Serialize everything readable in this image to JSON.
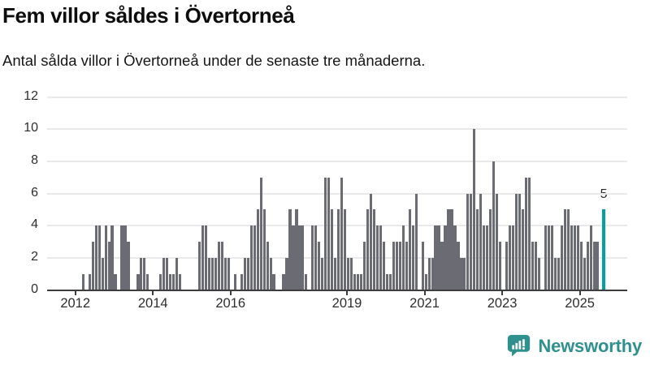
{
  "page": {
    "title": "Fem villor såldes i Övertorneå",
    "subtitle": "Antal sålda villor i Övertorneå under de senaste tre månaderna."
  },
  "annotation": {
    "last_value_label": "5"
  },
  "branding": {
    "name": "Newsworthy",
    "icon": "newsworthy-speech-bubble-chart-icon"
  },
  "colors": {
    "bar": "#6b6b74",
    "highlight": "#00a29e",
    "gridline": "#e9e9e9",
    "axis": "#3d3d3d",
    "text": "#161616",
    "brand": "#2f918e"
  },
  "chart_data": {
    "type": "bar",
    "title": "Fem villor såldes i Övertorneå",
    "subtitle": "Antal sålda villor i Övertorneå under de senaste tre månaderna.",
    "x_unit": "month",
    "x_start": "2012-01",
    "x_end": "2025-08",
    "x_tick_years": [
      2012,
      2014,
      2016,
      2019,
      2021,
      2023,
      2025
    ],
    "y_ticks": [
      0,
      2,
      4,
      6,
      8,
      10,
      12
    ],
    "ylim": [
      0,
      12
    ],
    "grid": "horizontal",
    "legend": "none",
    "highlight_last_bar": true,
    "last_bar_label": "5",
    "series": [
      {
        "name": "Antal sålda villor",
        "values": [
          0,
          0,
          1,
          0,
          1,
          3,
          4,
          4,
          2,
          4,
          3,
          4,
          1,
          0,
          4,
          4,
          3,
          0,
          0,
          1,
          2,
          2,
          1,
          0,
          0,
          0,
          1,
          2,
          2,
          1,
          1,
          2,
          1,
          0,
          0,
          0,
          0,
          0,
          3,
          4,
          4,
          2,
          2,
          2,
          3,
          3,
          2,
          2,
          0,
          1,
          0,
          1,
          2,
          2,
          4,
          4,
          5,
          7,
          5,
          3,
          2,
          1,
          0,
          0,
          1,
          2,
          5,
          4,
          5,
          4,
          4,
          1,
          0,
          4,
          4,
          3,
          2,
          7,
          7,
          5,
          2,
          5,
          7,
          5,
          2,
          2,
          1,
          1,
          1,
          3,
          5,
          6,
          5,
          4,
          4,
          3,
          1,
          1,
          3,
          3,
          3,
          4,
          3,
          5,
          4,
          6,
          0,
          3,
          1,
          2,
          2,
          4,
          4,
          3,
          4,
          5,
          5,
          4,
          3,
          2,
          2,
          6,
          6,
          10,
          5,
          6,
          4,
          4,
          5,
          8,
          6,
          3,
          0,
          3,
          4,
          4,
          6,
          6,
          5,
          7,
          7,
          3,
          3,
          2,
          0,
          4,
          4,
          4,
          2,
          2,
          4,
          5,
          5,
          4,
          4,
          4,
          3,
          2,
          3,
          4,
          3,
          3,
          0,
          5
        ]
      }
    ]
  }
}
